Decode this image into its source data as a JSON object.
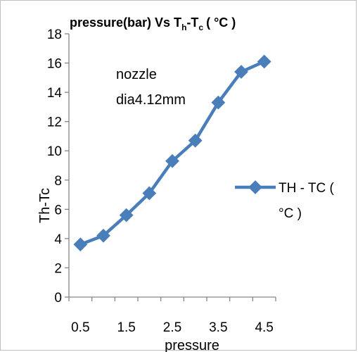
{
  "chart_data": {
    "type": "line",
    "title_parts": {
      "main": "pressure(bar) Vs T",
      "sub1": "h",
      "mid": "-T",
      "sub2": "c",
      "tail": "(  °C  )"
    },
    "xlabel": "pressure",
    "ylabel": "Th-Tc",
    "categories": [
      "0.5",
      "1",
      "1.5",
      "2",
      "2.5",
      "3",
      "3.5",
      "4",
      "4.5"
    ],
    "x_tick_labels": [
      "0.5",
      "1.5",
      "2.5",
      "3.5",
      "4.5"
    ],
    "ylim": [
      0,
      18
    ],
    "y_ticks": [
      0,
      2,
      4,
      6,
      8,
      10,
      12,
      14,
      16,
      18
    ],
    "series": [
      {
        "name": "TH - TC ( °C )",
        "legend_lines": [
          "TH - TC (",
          "°C  )"
        ],
        "color": "#4a7ebb",
        "values": [
          3.6,
          4.2,
          5.6,
          7.1,
          9.3,
          10.7,
          13.3,
          15.4,
          16.1
        ]
      }
    ],
    "annotation": [
      "nozzle",
      "dia4.12mm"
    ],
    "grid": false,
    "legend_position": "right"
  }
}
